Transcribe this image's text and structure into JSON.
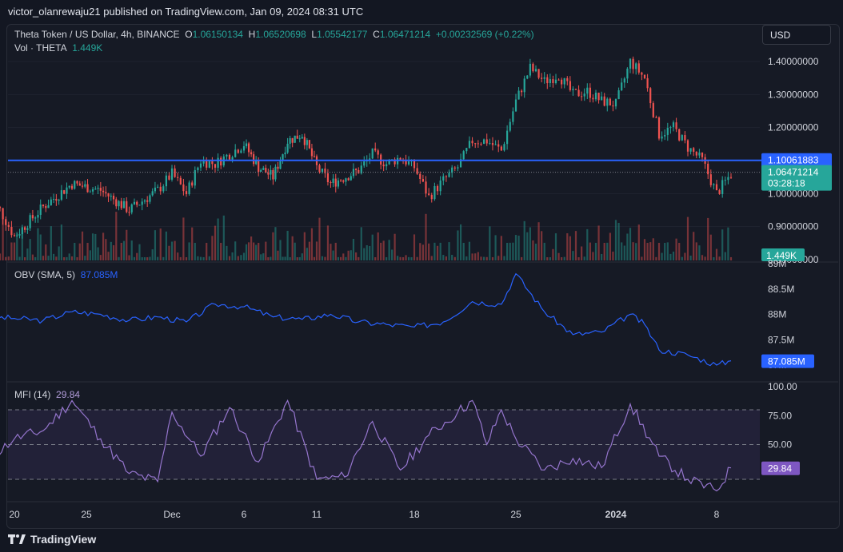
{
  "header": {
    "publisher": "victor_olanrewaju21 published on TradingView.com, Jan 09, 2024 08:31 UTC"
  },
  "legend": {
    "symbol": "Theta Token / US Dollar, 4h, BINANCE",
    "o_label": "O",
    "o": "1.06150134",
    "h_label": "H",
    "h": "1.06520698",
    "l_label": "L",
    "l": "1.05542177",
    "c_label": "C",
    "c": "1.06471214",
    "change": "+0.00232569 (+0.22%)",
    "vol_label": "Vol · THETA",
    "vol_value": "1.449K",
    "obv_label": "OBV (SMA, 5)",
    "obv_value": "87.085M",
    "mfi_label": "MFI (14)",
    "mfi_value": "29.84"
  },
  "currency_button": "USD",
  "footer": {
    "brand": "TradingView"
  },
  "colors": {
    "up": "#26a69a",
    "down": "#ef5350",
    "obv": "#2962ff",
    "mfi": "#7e57c2",
    "level_line": "#2962ff",
    "background": "#131722"
  },
  "chart_data": [
    {
      "type": "candlestick",
      "title": "Theta Token / US Dollar, 4h, BINANCE",
      "x_ticks": [
        "20",
        "25",
        "Dec",
        "6",
        "11",
        "18",
        "25",
        "2024",
        "8"
      ],
      "y_ticks": [
        "1.40000000",
        "1.30000000",
        "1.20000000",
        "1.10000000",
        "1.00000000",
        "0.90000000",
        "0.80000000"
      ],
      "ylim": [
        0.8,
        1.45
      ],
      "horizontal_line": 1.10061883,
      "price_tags": {
        "line": "1.10061883",
        "last": "1.06471214",
        "countdown": "03:28:18",
        "volume": "1.449K"
      },
      "close_path": [
        {
          "x": "Nov 18",
          "y": 0.97
        },
        {
          "x": "Nov 19",
          "y": 0.95
        },
        {
          "x": "Nov 20",
          "y": 0.87
        },
        {
          "x": "Nov 22",
          "y": 0.96
        },
        {
          "x": "Nov 24",
          "y": 1.03
        },
        {
          "x": "Nov 26",
          "y": 1.01
        },
        {
          "x": "Nov 28",
          "y": 0.95
        },
        {
          "x": "Nov 30",
          "y": 1.01
        },
        {
          "x": "Dec 1",
          "y": 1.06
        },
        {
          "x": "Dec 2",
          "y": 1.0
        },
        {
          "x": "Dec 3",
          "y": 1.1
        },
        {
          "x": "Dec 4",
          "y": 1.09
        },
        {
          "x": "Dec 5",
          "y": 1.12
        },
        {
          "x": "Dec 6",
          "y": 1.15
        },
        {
          "x": "Dec 7",
          "y": 1.08
        },
        {
          "x": "Dec 8",
          "y": 1.05
        },
        {
          "x": "Dec 9",
          "y": 1.16
        },
        {
          "x": "Dec 10",
          "y": 1.18
        },
        {
          "x": "Dec 11",
          "y": 1.08
        },
        {
          "x": "Dec 12",
          "y": 1.03
        },
        {
          "x": "Dec 14",
          "y": 1.07
        },
        {
          "x": "Dec 15",
          "y": 1.12
        },
        {
          "x": "Dec 16",
          "y": 1.09
        },
        {
          "x": "Dec 17",
          "y": 1.11
        },
        {
          "x": "Dec 18",
          "y": 1.08
        },
        {
          "x": "Dec 19",
          "y": 0.99
        },
        {
          "x": "Dec 20",
          "y": 1.04
        },
        {
          "x": "Dec 21",
          "y": 1.08
        },
        {
          "x": "Dec 22",
          "y": 1.16
        },
        {
          "x": "Dec 23",
          "y": 1.16
        },
        {
          "x": "Dec 24",
          "y": 1.13
        },
        {
          "x": "Dec 25",
          "y": 1.28
        },
        {
          "x": "Dec 26",
          "y": 1.38
        },
        {
          "x": "Dec 27",
          "y": 1.34
        },
        {
          "x": "Dec 28",
          "y": 1.36
        },
        {
          "x": "Dec 29",
          "y": 1.3
        },
        {
          "x": "Dec 30",
          "y": 1.31
        },
        {
          "x": "Dec 31",
          "y": 1.28
        },
        {
          "x": "Jan 1",
          "y": 1.27
        },
        {
          "x": "Jan 2",
          "y": 1.4
        },
        {
          "x": "Jan 3",
          "y": 1.35
        },
        {
          "x": "Jan 4",
          "y": 1.18
        },
        {
          "x": "Jan 5",
          "y": 1.2
        },
        {
          "x": "Jan 6",
          "y": 1.14
        },
        {
          "x": "Jan 7",
          "y": 1.1
        },
        {
          "x": "Jan 8",
          "y": 1.0
        },
        {
          "x": "Jan 9",
          "y": 1.06
        }
      ]
    },
    {
      "type": "line",
      "title": "OBV (SMA, 5)",
      "y_ticks": [
        "89M",
        "88.5M",
        "88M",
        "87.5M",
        "87M"
      ],
      "ylim": [
        86.95,
        89.0
      ],
      "last_value": "87.085M",
      "x": [
        "Nov 18",
        "Nov 20",
        "Nov 22",
        "Nov 24",
        "Nov 26",
        "Nov 28",
        "Nov 30",
        "Dec 2",
        "Dec 4",
        "Dec 6",
        "Dec 8",
        "Dec 10",
        "Dec 12",
        "Dec 14",
        "Dec 16",
        "Dec 18",
        "Dec 20",
        "Dec 22",
        "Dec 24",
        "Dec 25",
        "Dec 27",
        "Dec 29",
        "Dec 31",
        "Jan 2",
        "Jan 3",
        "Jan 4",
        "Jan 6",
        "Jan 8",
        "Jan 9"
      ],
      "values": [
        87.95,
        87.92,
        87.88,
        88.05,
        88.0,
        87.88,
        87.95,
        87.85,
        88.2,
        88.15,
        87.95,
        87.9,
        88.0,
        87.85,
        87.8,
        87.75,
        87.85,
        88.25,
        88.2,
        88.8,
        88.05,
        87.6,
        87.65,
        88.0,
        87.8,
        87.3,
        87.2,
        87.0,
        87.085
      ]
    },
    {
      "type": "line",
      "title": "MFI (14)",
      "y_ticks": [
        "100.00",
        "75.00",
        "50.00",
        "29.84"
      ],
      "ylim": [
        0,
        100
      ],
      "bands": [
        20,
        50,
        80
      ],
      "last_value": "29.84",
      "x": [
        "Nov 18",
        "Nov 20",
        "Nov 22",
        "Nov 24",
        "Nov 26",
        "Nov 28",
        "Nov 30",
        "Dec 1",
        "Dec 3",
        "Dec 5",
        "Dec 7",
        "Dec 9",
        "Dec 11",
        "Dec 13",
        "Dec 15",
        "Dec 17",
        "Dec 19",
        "Dec 21",
        "Dec 22",
        "Dec 23",
        "Dec 24",
        "Dec 25",
        "Dec 27",
        "Dec 29",
        "Dec 31",
        "Jan 2",
        "Jan 4",
        "Jan 6",
        "Jan 8",
        "Jan 9"
      ],
      "values": [
        35,
        55,
        62,
        88,
        55,
        25,
        18,
        78,
        40,
        82,
        35,
        88,
        20,
        22,
        70,
        28,
        58,
        78,
        88,
        50,
        80,
        55,
        28,
        38,
        30,
        85,
        40,
        20,
        10,
        29.84
      ]
    }
  ]
}
